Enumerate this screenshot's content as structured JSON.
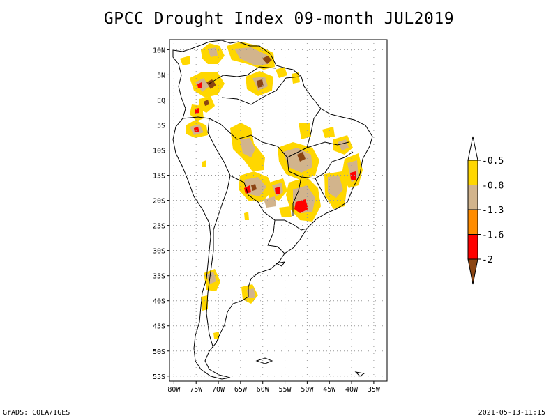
{
  "title": "GPCC Drought Index 09-month JUL2019",
  "footer": {
    "left": "GrADS: COLA/IGES",
    "right": "2021-05-13-11:15"
  },
  "map": {
    "lon_range": [
      -81,
      -32
    ],
    "lat_range": [
      -56,
      12
    ],
    "lat_ticks": [
      {
        "value": 10,
        "label": "10N"
      },
      {
        "value": 5,
        "label": "5N"
      },
      {
        "value": 0,
        "label": "EQ"
      },
      {
        "value": -5,
        "label": "5S"
      },
      {
        "value": -10,
        "label": "10S"
      },
      {
        "value": -15,
        "label": "15S"
      },
      {
        "value": -20,
        "label": "20S"
      },
      {
        "value": -25,
        "label": "25S"
      },
      {
        "value": -30,
        "label": "30S"
      },
      {
        "value": -35,
        "label": "35S"
      },
      {
        "value": -40,
        "label": "40S"
      },
      {
        "value": -45,
        "label": "45S"
      },
      {
        "value": -50,
        "label": "50S"
      },
      {
        "value": -55,
        "label": "55S"
      }
    ],
    "lon_ticks": [
      {
        "value": -80,
        "label": "80W"
      },
      {
        "value": -75,
        "label": "75W"
      },
      {
        "value": -70,
        "label": "70W"
      },
      {
        "value": -65,
        "label": "65W"
      },
      {
        "value": -60,
        "label": "60W"
      },
      {
        "value": -55,
        "label": "55W"
      },
      {
        "value": -50,
        "label": "50W"
      },
      {
        "value": -45,
        "label": "45W"
      },
      {
        "value": -40,
        "label": "40W"
      },
      {
        "value": -35,
        "label": "35W"
      }
    ],
    "grid": true
  },
  "colorbar": {
    "levels": [
      "-0.5",
      "-0.8",
      "-1.3",
      "-1.6",
      "-2"
    ],
    "colors": [
      "#ffd700",
      "#d2b48c",
      "#ff8c00",
      "#ff0000",
      "#8b4513"
    ],
    "tip_color": "#ffffff"
  }
}
